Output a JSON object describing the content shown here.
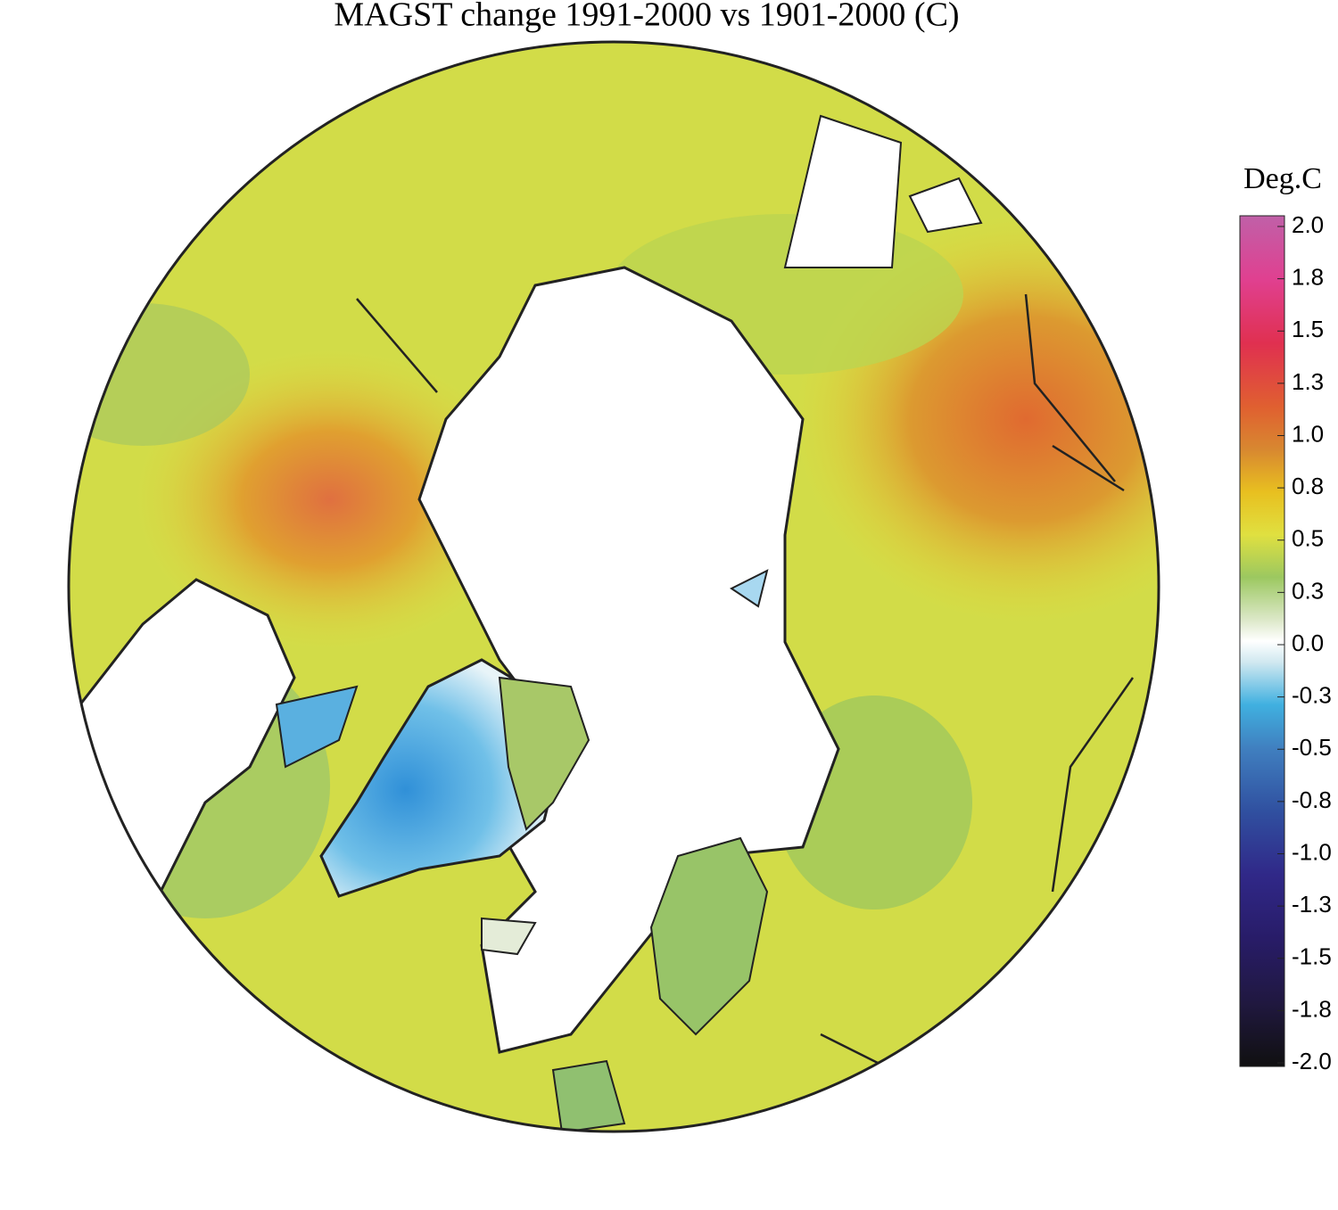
{
  "title": "MAGST change 1991-2000 vs 1901-2000 (C)",
  "legend": {
    "title": "Deg.C",
    "range": [
      -2,
      2
    ],
    "ticks": [
      {
        "value": 2,
        "label": "2.0"
      },
      {
        "value": 1.75,
        "label": "1.8"
      },
      1.5,
      {
        "value": 1.25,
        "label": "1.3"
      },
      {
        "value": 1,
        "label": "1.0"
      },
      {
        "value": 0.75,
        "label": "0.8"
      },
      0.5,
      {
        "value": 0.25,
        "label": "0.3"
      },
      {
        "value": 0,
        "label": "0.0"
      },
      {
        "value": -0.25,
        "label": "-0.3"
      },
      -0.5,
      {
        "value": -0.75,
        "label": "-0.8"
      },
      {
        "value": -1,
        "label": "-1.0"
      },
      {
        "value": -1.25,
        "label": "-1.3"
      },
      -1.5,
      {
        "value": -1.75,
        "label": "-1.8"
      },
      {
        "value": -2,
        "label": "-2.0"
      }
    ],
    "colorscale": [
      {
        "value": 2,
        "color": "#c060a8"
      },
      {
        "value": 1.7,
        "color": "#e04090"
      },
      {
        "value": 1.4,
        "color": "#e03050"
      },
      {
        "value": 1.1,
        "color": "#e06030"
      },
      {
        "value": 0.9,
        "color": "#d88830"
      },
      {
        "value": 0.7,
        "color": "#e8c020"
      },
      {
        "value": 0.5,
        "color": "#e0e040"
      },
      {
        "value": 0.3,
        "color": "#9cc860"
      },
      {
        "value": 0.1,
        "color": "#dce8c8"
      },
      {
        "value": 0,
        "color": "#ffffff"
      },
      {
        "value": -0.1,
        "color": "#d0e8f0"
      },
      {
        "value": -0.3,
        "color": "#40b0e0"
      },
      {
        "value": -0.5,
        "color": "#4080c0"
      },
      {
        "value": -0.8,
        "color": "#3050a0"
      },
      {
        "value": -1.1,
        "color": "#302888"
      },
      {
        "value": -1.4,
        "color": "#281c68"
      },
      {
        "value": -1.7,
        "color": "#201840"
      },
      {
        "value": -2,
        "color": "#101010"
      }
    ]
  }
}
